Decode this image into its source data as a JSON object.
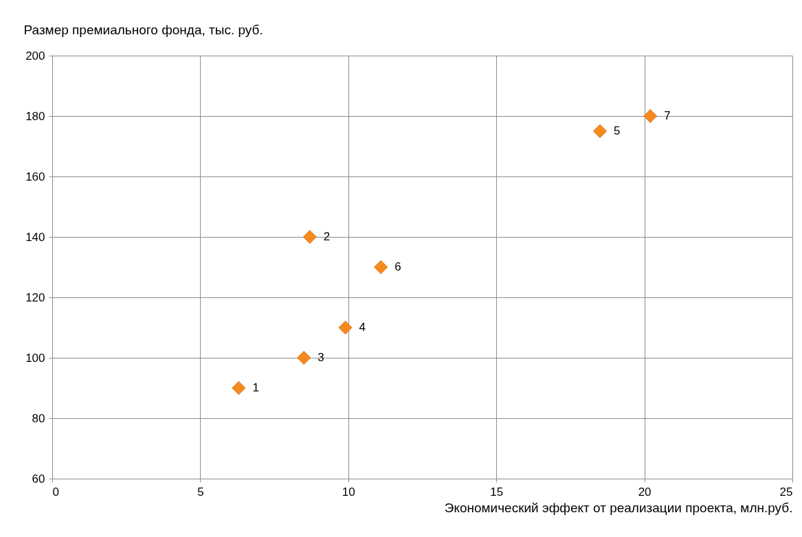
{
  "chart_data": {
    "type": "scatter",
    "xlabel": "Экономический эффект от реализации проекта, млн.руб.",
    "ylabel": "Размер премиального фонда, тыс. руб.",
    "x": [
      6.3,
      8.7,
      8.5,
      9.9,
      18.5,
      11.1,
      20.2
    ],
    "series": [
      {
        "color": "#f58a1f",
        "values": [
          90,
          140,
          100,
          110,
          175,
          130,
          180
        ]
      }
    ],
    "xlim": [
      0,
      25
    ],
    "xticks": [
      0,
      5,
      10,
      15,
      20,
      25
    ],
    "ylim": [
      60,
      200
    ],
    "yticks": [
      60,
      80,
      100,
      120,
      140,
      160,
      180,
      200
    ],
    "grid": true,
    "marker": "diamond",
    "annotations": [
      {
        "text": "1",
        "x": 6.3,
        "y": 90
      },
      {
        "text": "2",
        "x": 8.7,
        "y": 140
      },
      {
        "text": "3",
        "x": 8.5,
        "y": 100
      },
      {
        "text": "4",
        "x": 9.9,
        "y": 110
      },
      {
        "text": "5",
        "x": 18.5,
        "y": 175
      },
      {
        "text": "6",
        "x": 11.1,
        "y": 130
      },
      {
        "text": "7",
        "x": 20.2,
        "y": 180
      }
    ]
  }
}
